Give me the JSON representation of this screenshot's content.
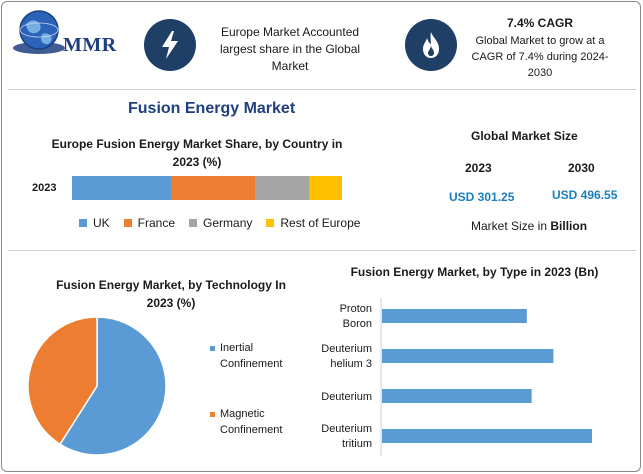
{
  "logo": {
    "text": "MMR"
  },
  "header": {
    "europe_text": "Europe Market Accounted largest share in the Global Market",
    "cagr_title": "7.4% CAGR",
    "cagr_text": "Global Market to grow at a CAGR of 7.4% during 2024-2030"
  },
  "main_title": "Fusion Energy Market",
  "global_size": {
    "title": "Global Market Size",
    "year_a": "2023",
    "year_b": "2030",
    "value_a": "USD 301.25",
    "value_b": "USD 496.55",
    "unit_prefix": "Market Size in ",
    "unit_bold": "Billion"
  },
  "colors": {
    "uk": "#5b9bd5",
    "france": "#ed7d31",
    "germany": "#a5a5a5",
    "rest_of_europe": "#ffc000",
    "inertial": "#5b9bd5",
    "magnetic": "#ed7d31",
    "type_bar": "#5b9bd5",
    "icon_bg": "#1f3f66"
  },
  "icons": {
    "lightning": "lightning-icon",
    "flame": "flame-icon",
    "globe": "globe-icon"
  },
  "chart_data": [
    {
      "type": "bar",
      "orientation": "horizontal-stacked",
      "title": "Europe Fusion Energy Market Share, by Country in 2023 (%)",
      "categories": [
        "2023"
      ],
      "series": [
        {
          "name": "UK",
          "values": [
            37
          ]
        },
        {
          "name": "France",
          "values": [
            31
          ]
        },
        {
          "name": "Germany",
          "values": [
            20
          ]
        },
        {
          "name": "Rest of Europe",
          "values": [
            12
          ]
        }
      ],
      "legend": "bottom",
      "grid": false
    },
    {
      "type": "pie",
      "title": "Fusion Energy Market, by Technology In 2023 (%)",
      "labels": [
        "Inertial Confinement",
        "Magnetic Confinement"
      ],
      "values": [
        59,
        41
      ],
      "legend": "right"
    },
    {
      "type": "bar",
      "orientation": "horizontal",
      "title": "Fusion Energy Market, by Type in 2023 (Bn)",
      "categories": [
        "Proton Boron",
        "Deuterium helium 3",
        "Deuterium",
        "Deuterium tritium"
      ],
      "values": [
        60,
        71,
        62,
        87
      ],
      "grid": false
    }
  ]
}
